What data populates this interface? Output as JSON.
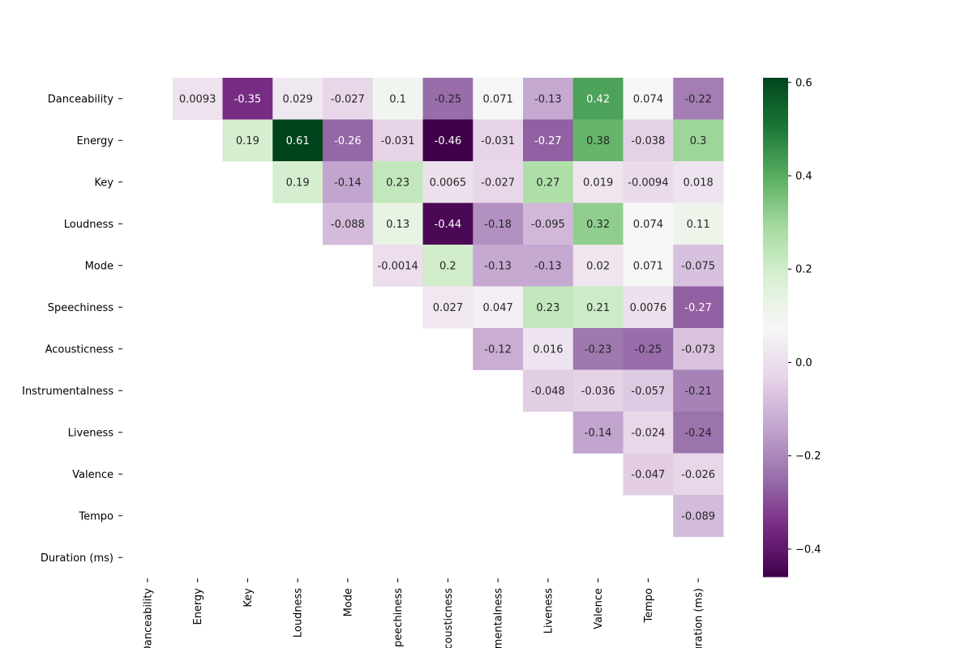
{
  "chart_data": {
    "type": "heatmap",
    "title": "",
    "xlabel": "",
    "ylabel": "",
    "labels": [
      "Danceability",
      "Energy",
      "Key",
      "Loudness",
      "Mode",
      "Speechiness",
      "Acousticness",
      "Instrumentalness",
      "Liveness",
      "Valence",
      "Tempo",
      "Duration (ms)"
    ],
    "mask": "upper-triangle (diagonal and below hidden)",
    "cells": [
      {
        "row": "Danceability",
        "col": "Energy",
        "value": 0.0093
      },
      {
        "row": "Danceability",
        "col": "Key",
        "value": -0.35
      },
      {
        "row": "Danceability",
        "col": "Loudness",
        "value": 0.029
      },
      {
        "row": "Danceability",
        "col": "Mode",
        "value": -0.027
      },
      {
        "row": "Danceability",
        "col": "Speechiness",
        "value": 0.1
      },
      {
        "row": "Danceability",
        "col": "Acousticness",
        "value": -0.25
      },
      {
        "row": "Danceability",
        "col": "Instrumentalness",
        "value": 0.071
      },
      {
        "row": "Danceability",
        "col": "Liveness",
        "value": -0.13
      },
      {
        "row": "Danceability",
        "col": "Valence",
        "value": 0.42
      },
      {
        "row": "Danceability",
        "col": "Tempo",
        "value": 0.074
      },
      {
        "row": "Danceability",
        "col": "Duration (ms)",
        "value": -0.22
      },
      {
        "row": "Energy",
        "col": "Key",
        "value": 0.19
      },
      {
        "row": "Energy",
        "col": "Loudness",
        "value": 0.61
      },
      {
        "row": "Energy",
        "col": "Mode",
        "value": -0.26
      },
      {
        "row": "Energy",
        "col": "Speechiness",
        "value": -0.031
      },
      {
        "row": "Energy",
        "col": "Acousticness",
        "value": -0.46
      },
      {
        "row": "Energy",
        "col": "Instrumentalness",
        "value": -0.031
      },
      {
        "row": "Energy",
        "col": "Liveness",
        "value": -0.27
      },
      {
        "row": "Energy",
        "col": "Valence",
        "value": 0.38
      },
      {
        "row": "Energy",
        "col": "Tempo",
        "value": -0.038
      },
      {
        "row": "Energy",
        "col": "Duration (ms)",
        "value": 0.3
      },
      {
        "row": "Key",
        "col": "Loudness",
        "value": 0.19
      },
      {
        "row": "Key",
        "col": "Mode",
        "value": -0.14
      },
      {
        "row": "Key",
        "col": "Speechiness",
        "value": 0.23
      },
      {
        "row": "Key",
        "col": "Acousticness",
        "value": 0.0065
      },
      {
        "row": "Key",
        "col": "Instrumentalness",
        "value": -0.027
      },
      {
        "row": "Key",
        "col": "Liveness",
        "value": 0.27
      },
      {
        "row": "Key",
        "col": "Valence",
        "value": 0.019
      },
      {
        "row": "Key",
        "col": "Tempo",
        "value": -0.0094
      },
      {
        "row": "Key",
        "col": "Duration (ms)",
        "value": 0.018
      },
      {
        "row": "Loudness",
        "col": "Mode",
        "value": -0.088
      },
      {
        "row": "Loudness",
        "col": "Speechiness",
        "value": 0.13
      },
      {
        "row": "Loudness",
        "col": "Acousticness",
        "value": -0.44
      },
      {
        "row": "Loudness",
        "col": "Instrumentalness",
        "value": -0.18
      },
      {
        "row": "Loudness",
        "col": "Liveness",
        "value": -0.095
      },
      {
        "row": "Loudness",
        "col": "Valence",
        "value": 0.32
      },
      {
        "row": "Loudness",
        "col": "Tempo",
        "value": 0.074
      },
      {
        "row": "Loudness",
        "col": "Duration (ms)",
        "value": 0.11
      },
      {
        "row": "Mode",
        "col": "Speechiness",
        "value": -0.0014
      },
      {
        "row": "Mode",
        "col": "Acousticness",
        "value": 0.2
      },
      {
        "row": "Mode",
        "col": "Instrumentalness",
        "value": -0.13
      },
      {
        "row": "Mode",
        "col": "Liveness",
        "value": -0.13
      },
      {
        "row": "Mode",
        "col": "Valence",
        "value": 0.02
      },
      {
        "row": "Mode",
        "col": "Tempo",
        "value": 0.071
      },
      {
        "row": "Mode",
        "col": "Duration (ms)",
        "value": -0.075
      },
      {
        "row": "Speechiness",
        "col": "Acousticness",
        "value": 0.027
      },
      {
        "row": "Speechiness",
        "col": "Instrumentalness",
        "value": 0.047
      },
      {
        "row": "Speechiness",
        "col": "Liveness",
        "value": 0.23
      },
      {
        "row": "Speechiness",
        "col": "Valence",
        "value": 0.21
      },
      {
        "row": "Speechiness",
        "col": "Tempo",
        "value": 0.0076
      },
      {
        "row": "Speechiness",
        "col": "Duration (ms)",
        "value": -0.27
      },
      {
        "row": "Acousticness",
        "col": "Instrumentalness",
        "value": -0.12
      },
      {
        "row": "Acousticness",
        "col": "Liveness",
        "value": 0.016
      },
      {
        "row": "Acousticness",
        "col": "Valence",
        "value": -0.23
      },
      {
        "row": "Acousticness",
        "col": "Tempo",
        "value": -0.25
      },
      {
        "row": "Acousticness",
        "col": "Duration (ms)",
        "value": -0.073
      },
      {
        "row": "Instrumentalness",
        "col": "Liveness",
        "value": -0.048
      },
      {
        "row": "Instrumentalness",
        "col": "Valence",
        "value": -0.036
      },
      {
        "row": "Instrumentalness",
        "col": "Tempo",
        "value": -0.057
      },
      {
        "row": "Instrumentalness",
        "col": "Duration (ms)",
        "value": -0.21
      },
      {
        "row": "Liveness",
        "col": "Valence",
        "value": -0.14
      },
      {
        "row": "Liveness",
        "col": "Tempo",
        "value": -0.024
      },
      {
        "row": "Liveness",
        "col": "Duration (ms)",
        "value": -0.24
      },
      {
        "row": "Valence",
        "col": "Tempo",
        "value": -0.047
      },
      {
        "row": "Valence",
        "col": "Duration (ms)",
        "value": -0.026
      },
      {
        "row": "Tempo",
        "col": "Duration (ms)",
        "value": -0.089
      }
    ],
    "colormap": "PRGn",
    "vmin": -0.46,
    "vmax": 0.61,
    "colorbar": {
      "ticks": [
        0.6,
        0.4,
        0.2,
        0.0,
        -0.2,
        -0.4
      ],
      "tick_labels": [
        "0.6",
        "0.4",
        "0.2",
        "0.0",
        "−0.2",
        "−0.4"
      ]
    },
    "grid": false,
    "colorbar_placement": "right"
  }
}
